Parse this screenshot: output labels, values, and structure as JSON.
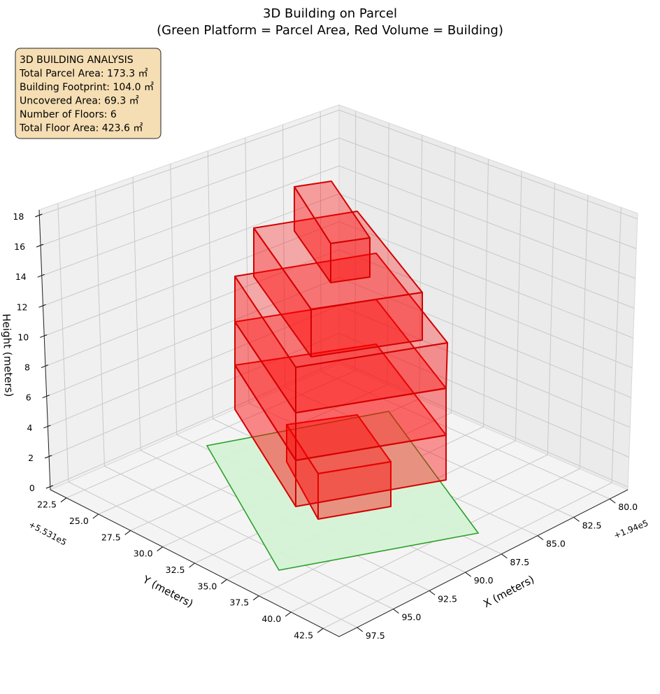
{
  "chart_data": {
    "type": "3d-bar",
    "title_line1": "3D Building on Parcel",
    "title_line2": "(Green Platform = Parcel Area, Red Volume = Building)",
    "xlabel": "X (meters)",
    "ylabel": "Y (meters)",
    "zlabel": "Height (meters)",
    "x_offset_label": "+1.94e5",
    "y_offset_label": "+5.531e5",
    "x_ticks": [
      "80.0",
      "82.5",
      "85.0",
      "87.5",
      "90.0",
      "92.5",
      "95.0",
      "97.5"
    ],
    "y_ticks": [
      "22.5",
      "25.0",
      "27.5",
      "30.0",
      "32.5",
      "35.0",
      "37.5",
      "40.0",
      "42.5"
    ],
    "z_ticks": [
      "0",
      "2",
      "4",
      "6",
      "8",
      "10",
      "12",
      "14",
      "16",
      "18"
    ],
    "grid": true,
    "colors": {
      "parcel_fill": "#d5f2d5",
      "parcel_edge": "#2ca02c",
      "building_fill": "#ff0000",
      "building_edge": "#d40000",
      "pane": "#f2f2f2",
      "grid": "#c8c8c8",
      "info_box_bg": "#f5deb3"
    },
    "info_box": {
      "lines": [
        "3D BUILDING ANALYSIS",
        "Total Parcel Area: 173.3 ㎡",
        "Building Footprint: 104.0 ㎡",
        "Uncovered Area: 69.3 ㎡",
        "Number of Floors: 6",
        "Total Floor Area: 423.6 ㎡"
      ]
    },
    "parcel": {
      "area": 173.3
    },
    "building": {
      "footprint": 104.0,
      "floors": 6,
      "total_floor_area": 423.6
    }
  }
}
